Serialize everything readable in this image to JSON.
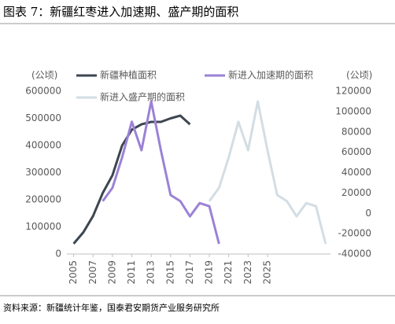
{
  "chart_data": {
    "type": "line",
    "title": "图表 7：新疆红枣进入加速期、盛产期的面积",
    "source": "资料来源：新疆统计年鉴，国泰君安期货产业服务研究所",
    "ylabel": "(公顷)",
    "y2label": "(公顷)",
    "x": [
      2005,
      2006,
      2007,
      2008,
      2009,
      2010,
      2011,
      2012,
      2013,
      2014,
      2015,
      2016,
      2017,
      2018,
      2019,
      2020,
      2021,
      2022,
      2023,
      2024,
      2025,
      2026,
      2027,
      2028,
      2029,
      2030,
      2031
    ],
    "xlim": [
      2004.3,
      2031.5
    ],
    "xticks": [
      2005,
      2007,
      2009,
      2011,
      2013,
      2015,
      2017,
      2019,
      2021,
      2023,
      2025
    ],
    "ylim": [
      0,
      600000
    ],
    "yticks": [
      0,
      100000,
      200000,
      300000,
      400000,
      500000,
      600000
    ],
    "y2lim": [
      -40000,
      120000
    ],
    "y2ticks": [
      -40000,
      -20000,
      0,
      20000,
      40000,
      60000,
      80000,
      100000,
      120000
    ],
    "series": [
      {
        "name": "新疆种植面积",
        "color": "#3d4650",
        "values": [
          38000,
          80000,
          140000,
          225000,
          290000,
          400000,
          458000,
          478000,
          487000,
          487000,
          500000,
          510000,
          478000,
          null,
          null,
          null,
          null,
          null,
          null,
          null,
          null,
          null,
          null,
          null,
          null,
          null,
          null
        ]
      },
      {
        "name": "新进入加速期的面积",
        "color": "#9b82d6",
        "axis": "y2",
        "values": [
          null,
          null,
          null,
          12000,
          25000,
          55000,
          90000,
          62000,
          110000,
          62000,
          18000,
          12000,
          -3000,
          10000,
          7000,
          -30000,
          null,
          null,
          null,
          null,
          null,
          null,
          null,
          null,
          null,
          null,
          null
        ]
      },
      {
        "name": "新进入盛产期的面积",
        "color": "#d3dde4",
        "axis": "y2",
        "values": [
          null,
          null,
          null,
          null,
          null,
          null,
          null,
          null,
          null,
          null,
          null,
          null,
          null,
          null,
          12000,
          25000,
          55000,
          90000,
          62000,
          110000,
          62000,
          18000,
          12000,
          -3000,
          10000,
          7000,
          -30000
        ]
      }
    ]
  }
}
